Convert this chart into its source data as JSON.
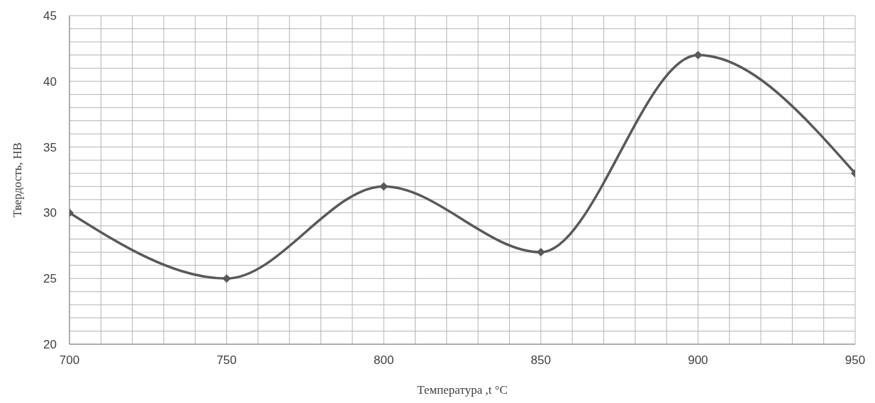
{
  "chart_data": {
    "type": "line",
    "xlabel": "Температура ,t °C",
    "ylabel": "Твердость, HB",
    "x": [
      700,
      750,
      800,
      850,
      900,
      950
    ],
    "series": [
      {
        "color": "#595959",
        "values": [
          30,
          25,
          32,
          27,
          42,
          33
        ]
      }
    ],
    "xlim": [
      700,
      950
    ],
    "xticks": [
      700,
      {
        "value": 710,
        "label": null
      },
      {
        "value": 720,
        "label": null
      },
      {
        "value": 730,
        "label": null
      },
      {
        "value": 740,
        "label": null
      },
      750,
      {
        "value": 760,
        "label": null
      },
      {
        "value": 770,
        "label": null
      },
      {
        "value": 780,
        "label": null
      },
      {
        "value": 790,
        "label": null
      },
      800,
      {
        "value": 810,
        "label": null
      },
      {
        "value": 820,
        "label": null
      },
      {
        "value": 830,
        "label": null
      },
      {
        "value": 840,
        "label": null
      },
      850,
      {
        "value": 860,
        "label": null
      },
      {
        "value": 870,
        "label": null
      },
      {
        "value": 880,
        "label": null
      },
      {
        "value": 890,
        "label": null
      },
      900,
      {
        "value": 910,
        "label": null
      },
      {
        "value": 920,
        "label": null
      },
      {
        "value": 930,
        "label": null
      },
      {
        "value": 940,
        "label": null
      },
      950
    ],
    "ylim": [
      20,
      45
    ],
    "yticks": [
      20,
      {
        "value": 21,
        "label": null
      },
      {
        "value": 22,
        "label": null
      },
      {
        "value": 23,
        "label": null
      },
      {
        "value": 24,
        "label": null
      },
      25,
      {
        "value": 26,
        "label": null
      },
      {
        "value": 27,
        "label": null
      },
      {
        "value": 28,
        "label": null
      },
      {
        "value": 29,
        "label": null
      },
      30,
      {
        "value": 31,
        "label": null
      },
      {
        "value": 32,
        "label": null
      },
      {
        "value": 33,
        "label": null
      },
      {
        "value": 34,
        "label": null
      },
      35,
      {
        "value": 36,
        "label": null
      },
      {
        "value": 37,
        "label": null
      },
      {
        "value": 38,
        "label": null
      },
      {
        "value": 39,
        "label": null
      },
      40,
      {
        "value": 41,
        "label": null
      },
      {
        "value": 42,
        "label": null
      },
      {
        "value": 43,
        "label": null
      },
      {
        "value": 44,
        "label": null
      },
      45
    ],
    "grid": true,
    "marker": "diamond",
    "line_style": "solid"
  }
}
